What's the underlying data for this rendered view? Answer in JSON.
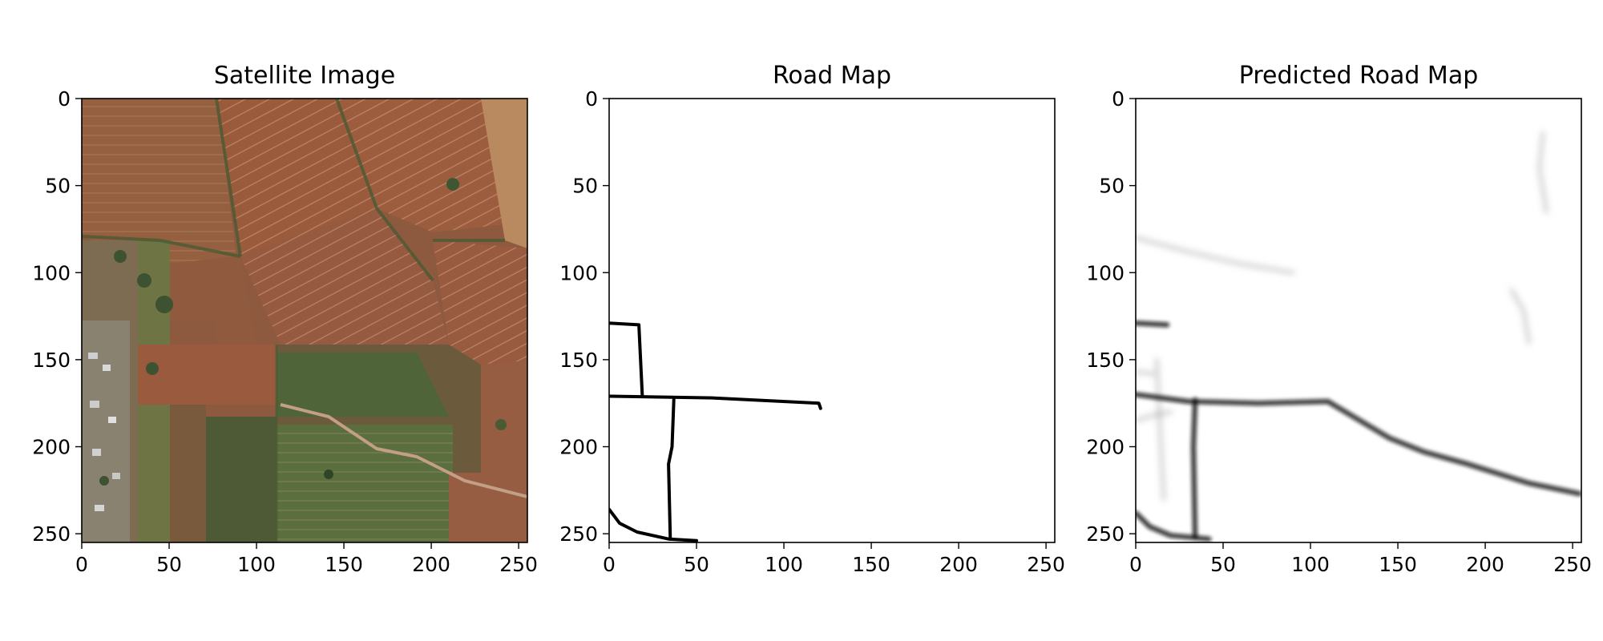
{
  "panels": [
    {
      "title": "Satellite Image",
      "xticks": [
        "0",
        "50",
        "100",
        "150",
        "200",
        "250"
      ],
      "yticks": [
        "0",
        "50",
        "100",
        "150",
        "200",
        "250"
      ]
    },
    {
      "title": "Road Map",
      "xticks": [
        "0",
        "50",
        "100",
        "150",
        "200",
        "250"
      ],
      "yticks": [
        "0",
        "50",
        "100",
        "150",
        "200",
        "250"
      ],
      "roads": [
        [
          [
            0,
            129
          ],
          [
            17,
            130
          ],
          [
            19,
            171
          ]
        ],
        [
          [
            0,
            171
          ],
          [
            60,
            172
          ],
          [
            120,
            175
          ],
          [
            121,
            178
          ]
        ],
        [
          [
            37,
            173
          ],
          [
            36,
            200
          ],
          [
            34,
            210
          ],
          [
            35,
            253
          ]
        ],
        [
          [
            0,
            236
          ],
          [
            6,
            244
          ],
          [
            16,
            249
          ],
          [
            34,
            253
          ],
          [
            50,
            254
          ]
        ]
      ]
    },
    {
      "title": "Predicted Road Map",
      "xticks": [
        "0",
        "50",
        "100",
        "150",
        "200",
        "250"
      ],
      "yticks": [
        "0",
        "50",
        "100",
        "150",
        "200",
        "250"
      ],
      "strong_roads": [
        [
          [
            0,
            170
          ],
          [
            30,
            174
          ],
          [
            70,
            175
          ],
          [
            110,
            174
          ],
          [
            120,
            180
          ],
          [
            145,
            195
          ],
          [
            165,
            203
          ],
          [
            190,
            210
          ],
          [
            225,
            221
          ],
          [
            254,
            227
          ]
        ],
        [
          [
            34,
            173
          ],
          [
            33,
            200
          ],
          [
            34,
            252
          ]
        ],
        [
          [
            0,
            238
          ],
          [
            8,
            246
          ],
          [
            20,
            251
          ],
          [
            42,
            253
          ]
        ],
        [
          [
            0,
            129
          ],
          [
            18,
            130
          ]
        ]
      ],
      "faint_roads": [
        [
          [
            0,
            80
          ],
          [
            30,
            88
          ],
          [
            60,
            95
          ],
          [
            90,
            100
          ]
        ],
        [
          [
            233,
            20
          ],
          [
            231,
            40
          ],
          [
            235,
            65
          ]
        ],
        [
          [
            215,
            110
          ],
          [
            222,
            122
          ],
          [
            225,
            140
          ]
        ],
        [
          [
            0,
            185
          ],
          [
            10,
            182
          ],
          [
            20,
            180
          ]
        ],
        [
          [
            12,
            150
          ],
          [
            14,
            190
          ],
          [
            16,
            230
          ]
        ],
        [
          [
            0,
            157
          ],
          [
            10,
            158
          ]
        ]
      ],
      "axis_max": 255
    }
  ]
}
